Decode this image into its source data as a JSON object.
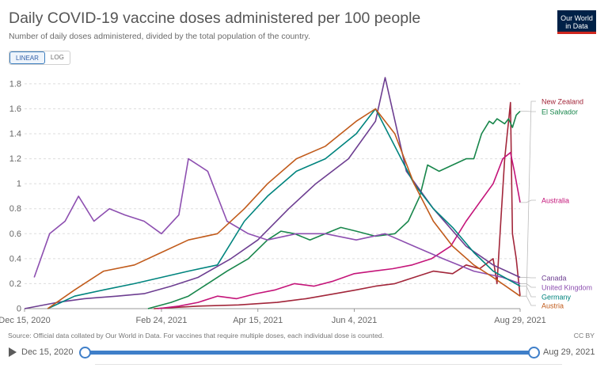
{
  "header": {
    "title": "Daily COVID-19 vaccine doses administered per 100 people",
    "subtitle": "Number of daily doses administered, divided by the total population of the country.",
    "logo_line1": "Our World",
    "logo_line2": "in Data"
  },
  "controls": {
    "linear_label": "LINEAR",
    "log_label": "LOG",
    "active_scale": "linear"
  },
  "footer": {
    "source": "Source: Official data collated by Our World in Data. For vaccines that require multiple doses, each individual dose is counted.",
    "license": "CC BY"
  },
  "timeline": {
    "start_label": "Dec 15, 2020",
    "end_label": "Aug 29, 2021"
  },
  "chart_data": {
    "type": "line",
    "title": "Daily COVID-19 vaccine doses administered per 100 people",
    "subtitle": "Number of daily doses administered, divided by the total population of the country.",
    "x_range": [
      "2020-12-15",
      "2021-08-29"
    ],
    "x_tick_labels": [
      "Dec 15, 2020",
      "Feb 24, 2021",
      "Apr 15, 2021",
      "Jun 4, 2021",
      "Aug 29, 2021"
    ],
    "x_tick_dates": [
      "2020-12-15",
      "2021-02-24",
      "2021-04-15",
      "2021-06-04",
      "2021-08-29"
    ],
    "y_ticks": [
      0,
      0.2,
      0.4,
      0.6,
      0.8,
      1,
      1.2,
      1.4,
      1.6,
      1.8
    ],
    "y_tick_labels": [
      "0",
      "0.2",
      "0.4",
      "0.6",
      "0.8",
      "1",
      "1.2",
      "1.4",
      "1.6",
      "1.8"
    ],
    "ylim": [
      0,
      1.85
    ],
    "grid": "horizontal-dashed",
    "legend": "line-end labels",
    "series": [
      {
        "name": "New Zealand",
        "color": "#a2263a",
        "points": [
          [
            "2021-02-20",
            0
          ],
          [
            "2021-03-15",
            0.02
          ],
          [
            "2021-04-05",
            0.03
          ],
          [
            "2021-04-25",
            0.05
          ],
          [
            "2021-05-10",
            0.08
          ],
          [
            "2021-05-25",
            0.12
          ],
          [
            "2021-06-05",
            0.15
          ],
          [
            "2021-06-15",
            0.18
          ],
          [
            "2021-06-25",
            0.2
          ],
          [
            "2021-07-05",
            0.25
          ],
          [
            "2021-07-15",
            0.3
          ],
          [
            "2021-07-25",
            0.28
          ],
          [
            "2021-08-01",
            0.35
          ],
          [
            "2021-08-08",
            0.32
          ],
          [
            "2021-08-15",
            0.4
          ],
          [
            "2021-08-17",
            0.2
          ],
          [
            "2021-08-19",
            0.7
          ],
          [
            "2021-08-21",
            1.2
          ],
          [
            "2021-08-23",
            1.5
          ],
          [
            "2021-08-24",
            1.65
          ],
          [
            "2021-08-25",
            0.6
          ],
          [
            "2021-08-27",
            0.4
          ],
          [
            "2021-08-29",
            0.1
          ]
        ]
      },
      {
        "name": "El Salvador",
        "color": "#18864b",
        "points": [
          [
            "2021-02-17",
            0
          ],
          [
            "2021-03-01",
            0.05
          ],
          [
            "2021-03-10",
            0.1
          ],
          [
            "2021-03-20",
            0.2
          ],
          [
            "2021-03-30",
            0.3
          ],
          [
            "2021-04-10",
            0.4
          ],
          [
            "2021-04-20",
            0.55
          ],
          [
            "2021-04-27",
            0.62
          ],
          [
            "2021-05-04",
            0.6
          ],
          [
            "2021-05-12",
            0.55
          ],
          [
            "2021-05-20",
            0.6
          ],
          [
            "2021-05-28",
            0.65
          ],
          [
            "2021-06-05",
            0.62
          ],
          [
            "2021-06-15",
            0.58
          ],
          [
            "2021-06-25",
            0.6
          ],
          [
            "2021-07-02",
            0.7
          ],
          [
            "2021-07-08",
            0.9
          ],
          [
            "2021-07-12",
            1.15
          ],
          [
            "2021-07-18",
            1.1
          ],
          [
            "2021-07-25",
            1.15
          ],
          [
            "2021-08-01",
            1.2
          ],
          [
            "2021-08-05",
            1.2
          ],
          [
            "2021-08-09",
            1.4
          ],
          [
            "2021-08-11",
            1.45
          ],
          [
            "2021-08-13",
            1.5
          ],
          [
            "2021-08-15",
            1.48
          ],
          [
            "2021-08-17",
            1.52
          ],
          [
            "2021-08-19",
            1.5
          ],
          [
            "2021-08-21",
            1.48
          ],
          [
            "2021-08-23",
            1.52
          ],
          [
            "2021-08-25",
            1.45
          ],
          [
            "2021-08-27",
            1.55
          ],
          [
            "2021-08-29",
            1.58
          ]
        ]
      },
      {
        "name": "Australia",
        "color": "#c41479",
        "points": [
          [
            "2021-02-22",
            0
          ],
          [
            "2021-03-05",
            0.02
          ],
          [
            "2021-03-15",
            0.05
          ],
          [
            "2021-03-25",
            0.1
          ],
          [
            "2021-04-04",
            0.08
          ],
          [
            "2021-04-14",
            0.12
          ],
          [
            "2021-04-24",
            0.15
          ],
          [
            "2021-05-04",
            0.2
          ],
          [
            "2021-05-14",
            0.18
          ],
          [
            "2021-05-24",
            0.22
          ],
          [
            "2021-06-04",
            0.28
          ],
          [
            "2021-06-14",
            0.3
          ],
          [
            "2021-06-24",
            0.32
          ],
          [
            "2021-07-04",
            0.35
          ],
          [
            "2021-07-14",
            0.4
          ],
          [
            "2021-07-24",
            0.5
          ],
          [
            "2021-08-01",
            0.7
          ],
          [
            "2021-08-08",
            0.85
          ],
          [
            "2021-08-15",
            1.0
          ],
          [
            "2021-08-20",
            1.2
          ],
          [
            "2021-08-24",
            1.25
          ],
          [
            "2021-08-26",
            1.1
          ],
          [
            "2021-08-29",
            0.85
          ]
        ]
      },
      {
        "name": "Canada",
        "color": "#6d3e91",
        "points": [
          [
            "2020-12-15",
            0
          ],
          [
            "2021-01-01",
            0.05
          ],
          [
            "2021-01-15",
            0.08
          ],
          [
            "2021-02-01",
            0.1
          ],
          [
            "2021-02-15",
            0.12
          ],
          [
            "2021-03-01",
            0.18
          ],
          [
            "2021-03-15",
            0.25
          ],
          [
            "2021-04-01",
            0.4
          ],
          [
            "2021-04-15",
            0.55
          ],
          [
            "2021-05-01",
            0.8
          ],
          [
            "2021-05-15",
            1.0
          ],
          [
            "2021-06-01",
            1.2
          ],
          [
            "2021-06-15",
            1.5
          ],
          [
            "2021-06-20",
            1.85
          ],
          [
            "2021-07-01",
            1.1
          ],
          [
            "2021-07-15",
            0.8
          ],
          [
            "2021-08-01",
            0.5
          ],
          [
            "2021-08-15",
            0.35
          ],
          [
            "2021-08-29",
            0.25
          ]
        ]
      },
      {
        "name": "United Kingdom",
        "color": "#8d4fb0",
        "points": [
          [
            "2020-12-20",
            0.25
          ],
          [
            "2020-12-28",
            0.6
          ],
          [
            "2021-01-05",
            0.7
          ],
          [
            "2021-01-12",
            0.9
          ],
          [
            "2021-01-20",
            0.7
          ],
          [
            "2021-01-28",
            0.8
          ],
          [
            "2021-02-05",
            0.75
          ],
          [
            "2021-02-15",
            0.7
          ],
          [
            "2021-02-24",
            0.6
          ],
          [
            "2021-03-05",
            0.75
          ],
          [
            "2021-03-10",
            1.2
          ],
          [
            "2021-03-20",
            1.1
          ],
          [
            "2021-03-30",
            0.7
          ],
          [
            "2021-04-10",
            0.6
          ],
          [
            "2021-04-20",
            0.55
          ],
          [
            "2021-05-05",
            0.6
          ],
          [
            "2021-05-20",
            0.6
          ],
          [
            "2021-06-05",
            0.55
          ],
          [
            "2021-06-20",
            0.6
          ],
          [
            "2021-07-05",
            0.5
          ],
          [
            "2021-07-20",
            0.4
          ],
          [
            "2021-08-05",
            0.3
          ],
          [
            "2021-08-20",
            0.25
          ],
          [
            "2021-08-29",
            0.2
          ]
        ]
      },
      {
        "name": "Germany",
        "color": "#00847e",
        "points": [
          [
            "2020-12-27",
            0
          ],
          [
            "2021-01-10",
            0.1
          ],
          [
            "2021-01-25",
            0.15
          ],
          [
            "2021-02-10",
            0.2
          ],
          [
            "2021-02-24",
            0.25
          ],
          [
            "2021-03-10",
            0.3
          ],
          [
            "2021-03-25",
            0.35
          ],
          [
            "2021-04-08",
            0.7
          ],
          [
            "2021-04-20",
            0.9
          ],
          [
            "2021-05-05",
            1.1
          ],
          [
            "2021-05-20",
            1.2
          ],
          [
            "2021-06-05",
            1.4
          ],
          [
            "2021-06-15",
            1.6
          ],
          [
            "2021-06-25",
            1.3
          ],
          [
            "2021-07-05",
            1.0
          ],
          [
            "2021-07-15",
            0.8
          ],
          [
            "2021-07-25",
            0.65
          ],
          [
            "2021-08-05",
            0.45
          ],
          [
            "2021-08-15",
            0.3
          ],
          [
            "2021-08-29",
            0.18
          ]
        ]
      },
      {
        "name": "Austria",
        "color": "#c15b1b",
        "points": [
          [
            "2020-12-27",
            0
          ],
          [
            "2021-01-10",
            0.15
          ],
          [
            "2021-01-25",
            0.3
          ],
          [
            "2021-02-10",
            0.35
          ],
          [
            "2021-02-24",
            0.45
          ],
          [
            "2021-03-10",
            0.55
          ],
          [
            "2021-03-25",
            0.6
          ],
          [
            "2021-04-08",
            0.8
          ],
          [
            "2021-04-20",
            1.0
          ],
          [
            "2021-05-05",
            1.2
          ],
          [
            "2021-05-20",
            1.3
          ],
          [
            "2021-06-05",
            1.5
          ],
          [
            "2021-06-15",
            1.6
          ],
          [
            "2021-06-25",
            1.4
          ],
          [
            "2021-07-05",
            1.0
          ],
          [
            "2021-07-15",
            0.7
          ],
          [
            "2021-07-25",
            0.5
          ],
          [
            "2021-08-05",
            0.35
          ],
          [
            "2021-08-15",
            0.25
          ],
          [
            "2021-08-29",
            0.1
          ]
        ]
      }
    ]
  }
}
